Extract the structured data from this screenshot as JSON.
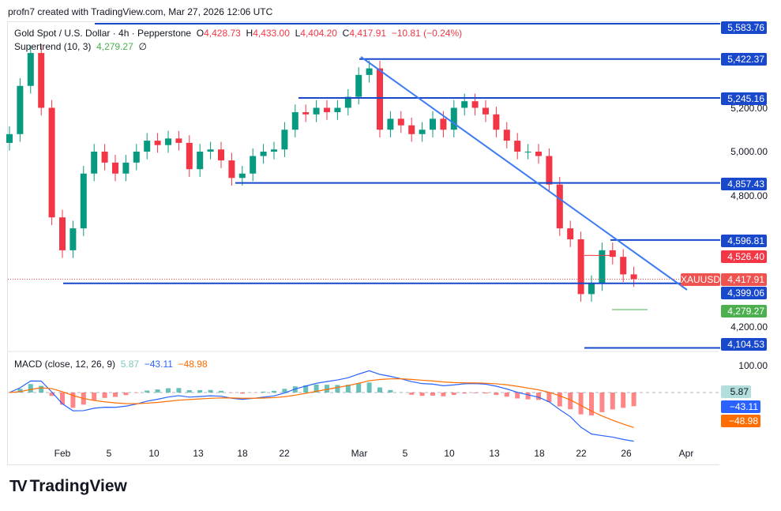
{
  "credit": "profn7 created with TradingView.com, Mar 27, 2026 12:06 UTC",
  "legend": {
    "symbol": "Gold Spot / U.S. Dollar · 4h · Pepperstone",
    "o_label": "O",
    "o": "4,428.73",
    "h_label": "H",
    "h": "4,433.00",
    "l_label": "L",
    "l": "4,404.20",
    "c_label": "C",
    "c": "4,417.91",
    "change": "−10.81 (−0.24%)",
    "indicator": "Supertrend (10, 3)",
    "indicator_value": "4,279.27",
    "indicator_extra": "∅"
  },
  "macd_legend": {
    "label": "MACD (close, 12, 26, 9)",
    "hist": "5.87",
    "macd": "−43.11",
    "signal": "−48.98"
  },
  "price_axis": [
    "5,200.00",
    "5,000.00",
    "4,800.00",
    "4,200.00"
  ],
  "macd_axis": [
    "100.00"
  ],
  "tags": {
    "levels": [
      "5,583.76",
      "5,422.37",
      "5,245.16",
      "4,857.43",
      "4,596.81",
      "4,399.06",
      "4,104.53"
    ],
    "supertrend_upper": "4,526.40",
    "symbol_label": "XAUUSD",
    "last_price": "4,417.91",
    "supertrend_lower": "4,279.27",
    "macd_hist": "5.87",
    "macd_line": "−43.11",
    "macd_signal": "−48.98"
  },
  "time_axis": [
    "Feb",
    "5",
    "10",
    "13",
    "18",
    "22",
    "Mar",
    "5",
    "10",
    "13",
    "18",
    "22",
    "26",
    "Apr"
  ],
  "brand": "TradingView",
  "colors": {
    "up": "#089981",
    "down": "#f23645",
    "level": "#1848cc",
    "trend": "#2962ff",
    "macd": "#2962ff",
    "signal": "#ff6d00"
  },
  "chart_data": {
    "type": "candlestick",
    "title": "Gold Spot / U.S. Dollar · 4h",
    "x_start": "Jan 27",
    "closes": [
      5080,
      5300,
      5450,
      5200,
      4700,
      4550,
      4650,
      4900,
      5000,
      4950,
      4900,
      4950,
      5000,
      5050,
      5030,
      5060,
      5040,
      4920,
      5000,
      5010,
      4960,
      4880,
      4900,
      4980,
      5000,
      5010,
      5100,
      5180,
      5170,
      5200,
      5180,
      5200,
      5250,
      5350,
      5380,
      5100,
      5150,
      5120,
      5080,
      5100,
      5150,
      5100,
      5200,
      5230,
      5200,
      5170,
      5100,
      5050,
      5000,
      5000,
      4980,
      4850,
      4650,
      4600,
      4350,
      4400,
      4550,
      4520,
      4440,
      4418
    ],
    "levels": [
      5583.76,
      5422.37,
      5245.16,
      4857.43,
      4596.81,
      4399.06,
      4104.53
    ],
    "trendline": [
      {
        "date": "Mar 2",
        "price": 5420
      },
      {
        "date": "Mar 30",
        "price": 4380
      }
    ],
    "ylim": [
      4080,
      5620
    ]
  }
}
